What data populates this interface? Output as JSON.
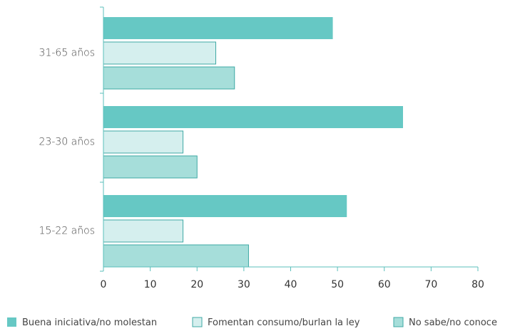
{
  "chart_data": {
    "type": "bar",
    "orientation": "horizontal",
    "categories": [
      "31-65 años",
      "23-30 años",
      "15-22 años"
    ],
    "series": [
      {
        "name": "Buena iniciativa/no molestan",
        "values": [
          49,
          64,
          52
        ],
        "color": "#66c8c4"
      },
      {
        "name": "Fomentan consumo/burlan la ley",
        "values": [
          24,
          17,
          17
        ],
        "color": "#d5efee"
      },
      {
        "name": "No sabe/no conoce",
        "values": [
          28,
          20,
          31
        ],
        "color": "#a6deda"
      }
    ],
    "xlim": [
      0,
      80
    ],
    "xticks": [
      0,
      10,
      20,
      30,
      40,
      50,
      60,
      70,
      80
    ],
    "legend_position": "bottom",
    "grid": false,
    "axis_color": "#5bbfbb",
    "bar_border_color": "#3fa9a4"
  }
}
